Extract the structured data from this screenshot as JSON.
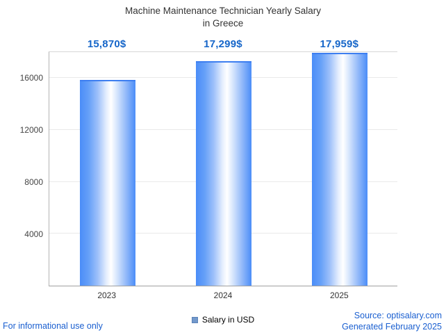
{
  "title": {
    "line1": "Machine Maintenance Technician Yearly Salary",
    "line2": "in Greece"
  },
  "legend": {
    "label": "Salary in USD"
  },
  "footer": {
    "disclaimer": "For informational use only",
    "source": "Source: optisalary.com",
    "generated": "Generated February 2025"
  },
  "colors": {
    "value_label_blue": "#1666c9",
    "footer_blue": "#1a5fd0",
    "bar_edge_blue": "#4b8df8",
    "bar_highlight": "#ffffff",
    "legend_swatch": "#7399cc",
    "title_text": "#333333",
    "gridline": "#e9e9e9"
  },
  "chart_data": {
    "type": "bar",
    "title": "Machine Maintenance Technician Yearly Salary in Greece",
    "categories": [
      "2023",
      "2024",
      "2025"
    ],
    "values": [
      15870,
      17299,
      17959
    ],
    "value_labels": [
      "15,870$",
      "17,299$",
      "17,959$"
    ],
    "series_name": "Salary in USD",
    "xlabel": "",
    "ylabel": "",
    "ylim": [
      0,
      18000
    ],
    "yticks": [
      4000,
      8000,
      12000,
      16000
    ],
    "grid": true,
    "legend_position": "bottom"
  }
}
